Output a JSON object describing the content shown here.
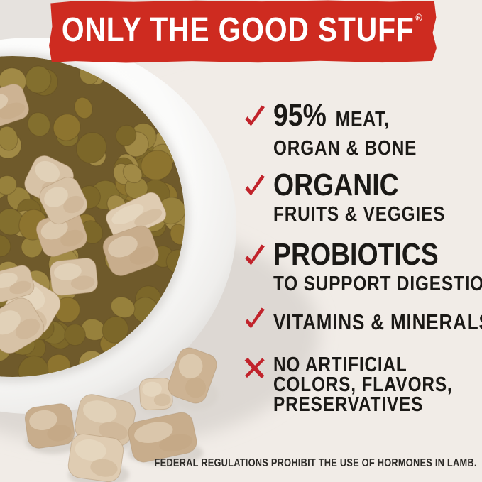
{
  "banner": {
    "text": "ONLY THE GOOD STUFF",
    "registered_mark": "®",
    "background_color": "#ce2b20",
    "text_color": "#ffffff"
  },
  "checklist": {
    "mark_color": "#c1232b",
    "text_color": "#1b1916",
    "items": [
      {
        "mark": "checkmark-icon",
        "big": "95%",
        "big_suffix": "MEAT,",
        "sub": "ORGAN & BONE"
      },
      {
        "mark": "checkmark-icon",
        "big": "ORGANIC",
        "sub": "FRUITS & VEGGIES"
      },
      {
        "mark": "checkmark-icon",
        "big": "PROBIOTICS",
        "sub": "TO SUPPORT DIGESTION"
      },
      {
        "mark": "checkmark-icon",
        "line": "VITAMINS & MINERALS"
      },
      {
        "mark": "x-icon",
        "lines": [
          "NO ARTIFICIAL",
          "COLORS, FLAVORS,",
          "PRESERVATIVES"
        ]
      }
    ]
  },
  "footnote": {
    "text": "FEDERAL REGULATIONS PROHIBIT THE USE OF HORMONES IN LAMB."
  },
  "photo": {
    "background_color": "#f1ece7",
    "bowl_color": "#ffffff",
    "kibble_colors": [
      "#8d742f",
      "#97813c",
      "#7c6729",
      "#a18a46",
      "#836f2e"
    ],
    "chunk_colors": [
      "#d7c2a6",
      "#cdb393",
      "#dfccb2",
      "#c8ad8c"
    ]
  }
}
